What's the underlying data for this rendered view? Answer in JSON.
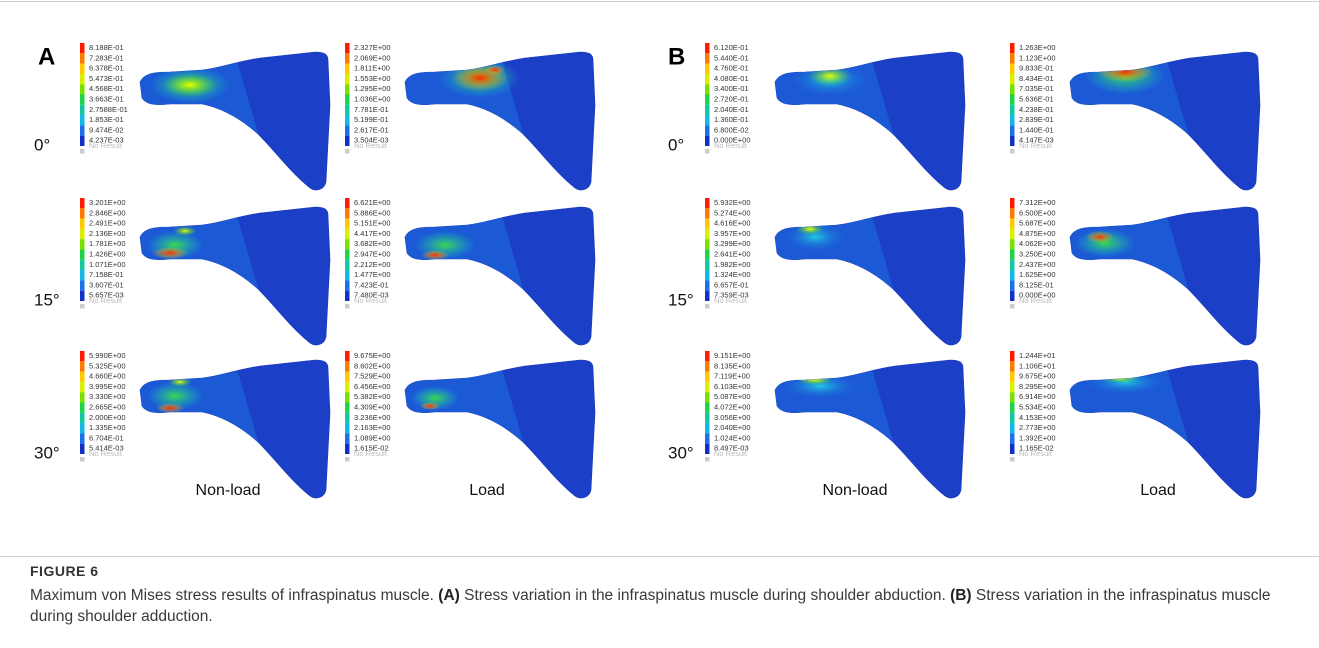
{
  "figure": {
    "panels": [
      {
        "letter": "A",
        "rows": [
          {
            "angle": "0°",
            "nonload": [
              "8.188E-01",
              "7.283E-01",
              "6.378E-01",
              "5.473E-01",
              "4.568E-01",
              "3.663E-01",
              "2.7588E-01",
              "1.853E-01",
              "9.474E-02",
              "4.237E-03"
            ],
            "load": [
              "2.327E+00",
              "2.069E+00",
              "1.811E+00",
              "1.553E+00",
              "1.295E+00",
              "1.036E+00",
              "7.781E-01",
              "5.199E-01",
              "2.617E-01",
              "3.504E-03"
            ]
          },
          {
            "angle": "15°",
            "nonload": [
              "3.201E+00",
              "2.846E+00",
              "2.491E+00",
              "2.136E+00",
              "1.781E+00",
              "1.426E+00",
              "1.071E+00",
              "7.158E-01",
              "3.607E-01",
              "5.657E-03"
            ],
            "load": [
              "6.621E+00",
              "5.886E+00",
              "5.151E+00",
              "4.417E+00",
              "3.682E+00",
              "2.947E+00",
              "2.212E+00",
              "1.477E+00",
              "7.423E-01",
              "7.480E-03"
            ]
          },
          {
            "angle": "30°",
            "nonload": [
              "5.990E+00",
              "5.325E+00",
              "4.660E+00",
              "3.995E+00",
              "3.330E+00",
              "2.665E+00",
              "2.000E+00",
              "1.335E+00",
              "6.704E-01",
              "5.414E-03"
            ],
            "load": [
              "9.675E+00",
              "8.602E+00",
              "7.529E+00",
              "6.456E+00",
              "5.382E+00",
              "4.309E+00",
              "3.236E+00",
              "2.163E+00",
              "1.089E+00",
              "1.615E-02"
            ]
          }
        ]
      },
      {
        "letter": "B",
        "rows": [
          {
            "angle": "0°",
            "nonload": [
              "6.120E-01",
              "5.440E-01",
              "4.760E-01",
              "4.080E-01",
              "3.400E-01",
              "2.720E-01",
              "2.040E-01",
              "1.360E-01",
              "6.800E-02",
              "0.000E+00"
            ],
            "load": [
              "1.263E+00",
              "1.123E+00",
              "9.833E-01",
              "8.434E-01",
              "7.035E-01",
              "5.636E-01",
              "4.238E-01",
              "2.839E-01",
              "1.440E-01",
              "4.147E-03"
            ]
          },
          {
            "angle": "15°",
            "nonload": [
              "5.932E+00",
              "5.274E+00",
              "4.616E+00",
              "3.957E+00",
              "3.299E+00",
              "2.641E+00",
              "1.982E+00",
              "1.324E+00",
              "6.657E-01",
              "7.359E-03"
            ],
            "load": [
              "7.312E+00",
              "6.500E+00",
              "5.687E+00",
              "4.875E+00",
              "4.062E+00",
              "3.250E+00",
              "2.437E+00",
              "1.625E+00",
              "8.125E-01",
              "0.000E+00"
            ]
          },
          {
            "angle": "30°",
            "nonload": [
              "9.151E+00",
              "8.135E+00",
              "7.119E+00",
              "6.103E+00",
              "5.087E+00",
              "4.072E+00",
              "3.056E+00",
              "2.040E+00",
              "1.024E+00",
              "8.497E-03"
            ],
            "load": [
              "1.244E+01",
              "1.106E+01",
              "9.675E+00",
              "8.295E+00",
              "6.914E+00",
              "5.534E+00",
              "4.153E+00",
              "2.773E+00",
              "1.392E+00",
              "1.165E-02"
            ]
          }
        ]
      }
    ],
    "column_labels": [
      "Non-load",
      "Load"
    ],
    "no_result": "No Result"
  },
  "caption": {
    "label": "FIGURE 6",
    "parts": [
      "Maximum von Mises stress results of infraspinatus muscle. ",
      "(A)",
      " Stress variation in the infraspinatus muscle during shoulder abduction. ",
      "(B)",
      " Stress variation in the infraspinatus muscle during shoulder adduction."
    ]
  }
}
